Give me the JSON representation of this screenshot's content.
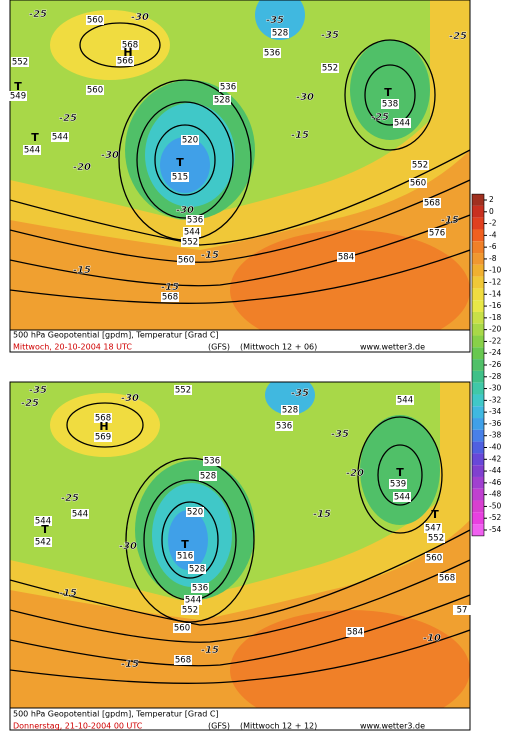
{
  "panels": [
    {
      "caption": "500 hPa Geopotential [gpdm], Temperatur [Grad C]",
      "date": "Mittwoch, 20-10-2004  18 UTC",
      "model": "(GFS)",
      "run": "(Mittwoch 12 + 06)",
      "site": "www.wetter3.de",
      "labels": [
        "-25",
        "560",
        "-30",
        "568",
        "H",
        "566",
        "552",
        "T",
        "549",
        "560",
        "-25",
        "544",
        "T",
        "544",
        "-20",
        "-30",
        "520",
        "T",
        "515",
        "528",
        "536",
        "528",
        "536",
        "-35",
        "552",
        "-30",
        "-25",
        "T",
        "538",
        "544",
        "-15",
        "552",
        "560",
        "568",
        "-15",
        "576",
        "584",
        "-25",
        "-30",
        "536",
        "544",
        "552",
        "560",
        "-15",
        "-15",
        "568",
        "-15",
        "-35"
      ]
    },
    {
      "caption": "500 hPa Geopotential [gpdm], Temperatur [Grad C]",
      "date": "Donnerstag, 21-10-2004  00 UTC",
      "model": "(GFS)",
      "run": "(Mittwoch 12 + 12)",
      "site": "www.wetter3.de",
      "labels": [
        "-35",
        "552",
        "-30",
        "568",
        "H",
        "569",
        "-25",
        "544",
        "544",
        "T",
        "542",
        "-30",
        "520",
        "T",
        "516",
        "528",
        "536",
        "544",
        "552",
        "560",
        "536",
        "528",
        "528",
        "536",
        "-35",
        "-35",
        "-20",
        "-15",
        "544",
        "T",
        "539",
        "544",
        "T",
        "547",
        "552",
        "560",
        "568",
        "57",
        "584",
        "-10",
        "-15",
        "-15",
        "568",
        "-15",
        "-25"
      ]
    }
  ],
  "colorbar": {
    "ticks": [
      2,
      0,
      -2,
      -4,
      -6,
      -8,
      -10,
      -12,
      -14,
      -16,
      -18,
      -20,
      -22,
      -24,
      -26,
      -28,
      -30,
      -32,
      -34,
      -36,
      -38,
      -40,
      -42,
      -44,
      -46,
      -48,
      -50,
      -52,
      -54
    ],
    "colors": [
      "#a03020",
      "#c83020",
      "#e04020",
      "#f06020",
      "#f08028",
      "#f09830",
      "#f0b030",
      "#f0c838",
      "#f0dc40",
      "#e8e848",
      "#c8e048",
      "#a8d848",
      "#88d048",
      "#68c850",
      "#50c068",
      "#40c088",
      "#40c8a8",
      "#40c8c8",
      "#40b8e0",
      "#40a0e8",
      "#4880e8",
      "#5060e0",
      "#6848d8",
      "#8040d0",
      "#a040d0",
      "#c040d0",
      "#d840d0",
      "#e840e0",
      "#f060f0"
    ]
  }
}
